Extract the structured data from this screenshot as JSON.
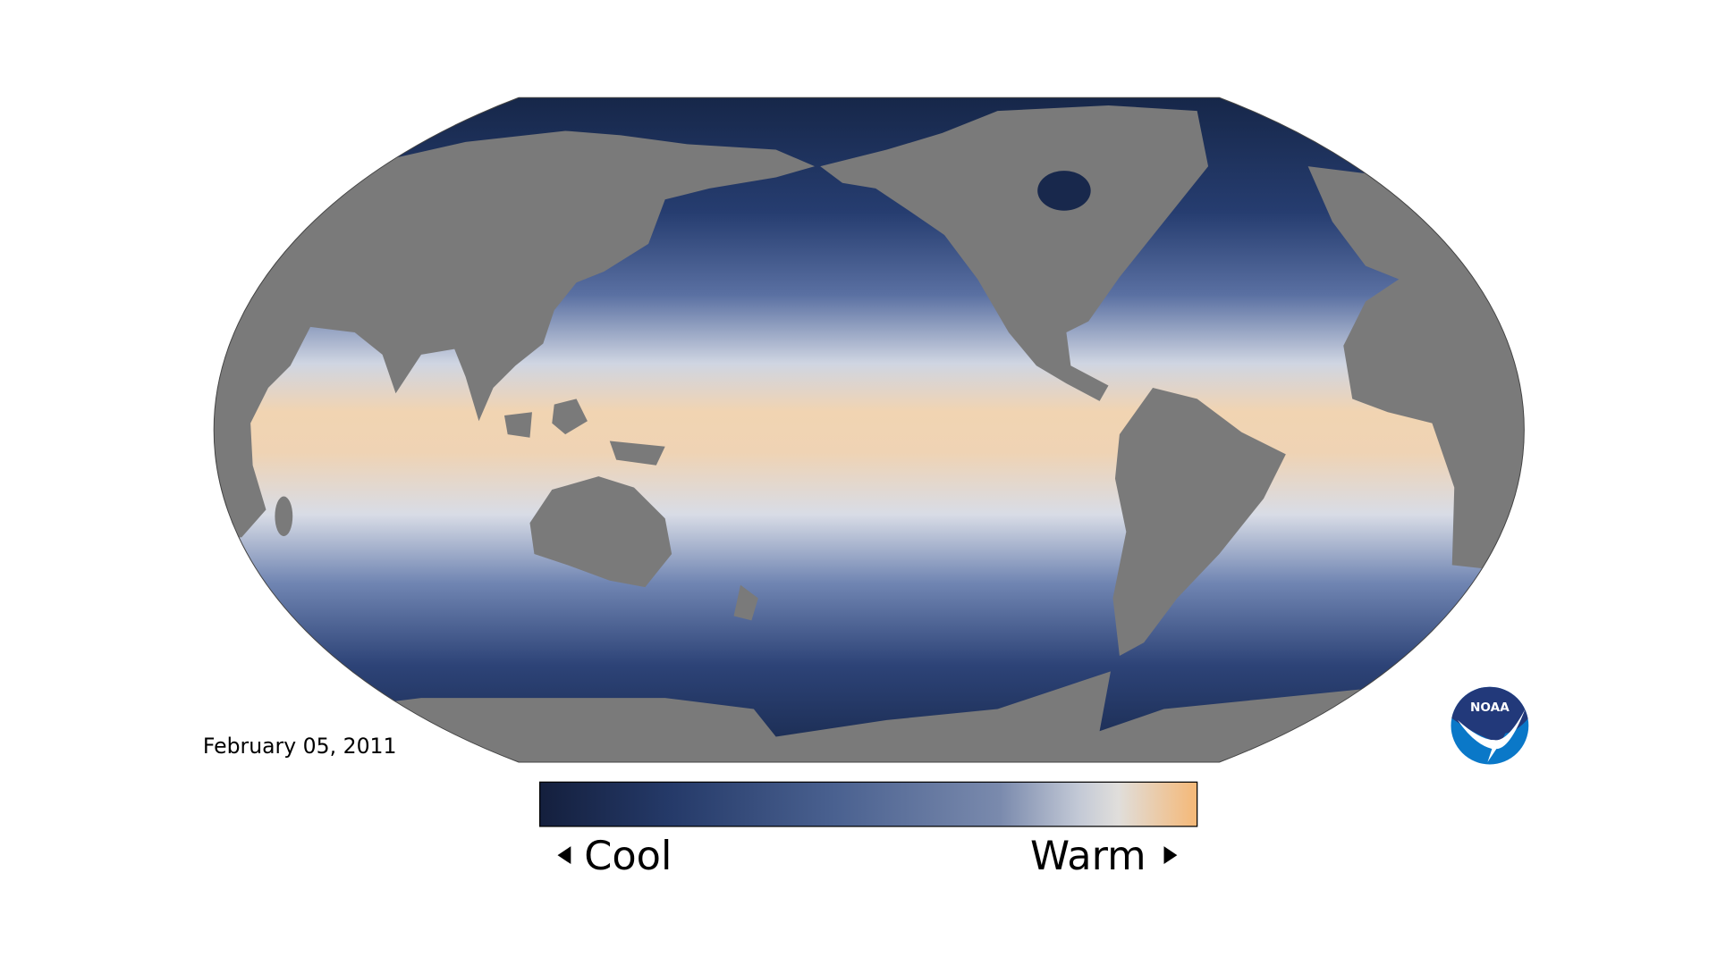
{
  "map": {
    "date": "February 05, 2011",
    "colors": {
      "land": "#7a7a7a",
      "ocean_cold": "#152546",
      "ocean_mid": "#4a6090",
      "ocean_neutral": "#dcdfe6",
      "ocean_warm": "#f5c186"
    }
  },
  "legend": {
    "cool_label": "Cool",
    "warm_label": "Warm",
    "left_arrow_icon": "triangle-left",
    "right_arrow_icon": "triangle-right"
  },
  "logo": {
    "text": "NOAA",
    "colors": {
      "top": "#22397a",
      "bottom": "#0a78c8"
    }
  }
}
